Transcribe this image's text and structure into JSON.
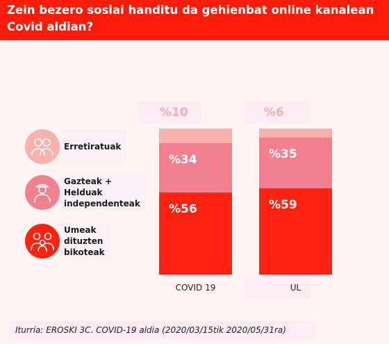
{
  "title": "Zein bezero soslai handitu da gehienbat online kanalean Covid aldian?",
  "source": "Iturria: EROSKI 3C. COVID-19 aldia (2020/03/15tik 2020/05/31ra)",
  "colors": {
    "header": "#ff1a0a",
    "erretiratuak": "#f9b2ad",
    "gazteak": "#f2808f",
    "umeak": "#ff2212"
  },
  "legend": [
    {
      "label": "Erretiratuak",
      "icon": "retired-couple-icon",
      "color": "#f9b2ad"
    },
    {
      "label": "Gazteak + Helduak\nindependenteak",
      "icon": "young-person-icon",
      "color": "#f2808f"
    },
    {
      "label": "Umeak dituzten\nbikoteak",
      "icon": "family-icon",
      "color": "#ff2212"
    }
  ],
  "chart_data": {
    "type": "bar",
    "stacked": true,
    "categories": [
      "COVID 19",
      "UL"
    ],
    "series": [
      {
        "name": "Umeak dituzten bikoteak",
        "values": [
          56,
          59
        ],
        "labels": [
          "%56",
          "%59"
        ]
      },
      {
        "name": "Gazteak + Helduak independenteak",
        "values": [
          34,
          35
        ],
        "labels": [
          "%34",
          "%35"
        ]
      },
      {
        "name": "Erretiratuak",
        "values": [
          10,
          6
        ],
        "labels": [
          "%10",
          "%6"
        ]
      }
    ],
    "title": "Zein bezero soslai handitu da gehienbat online kanalean Covid aldian?",
    "ylim": [
      0,
      100
    ]
  }
}
